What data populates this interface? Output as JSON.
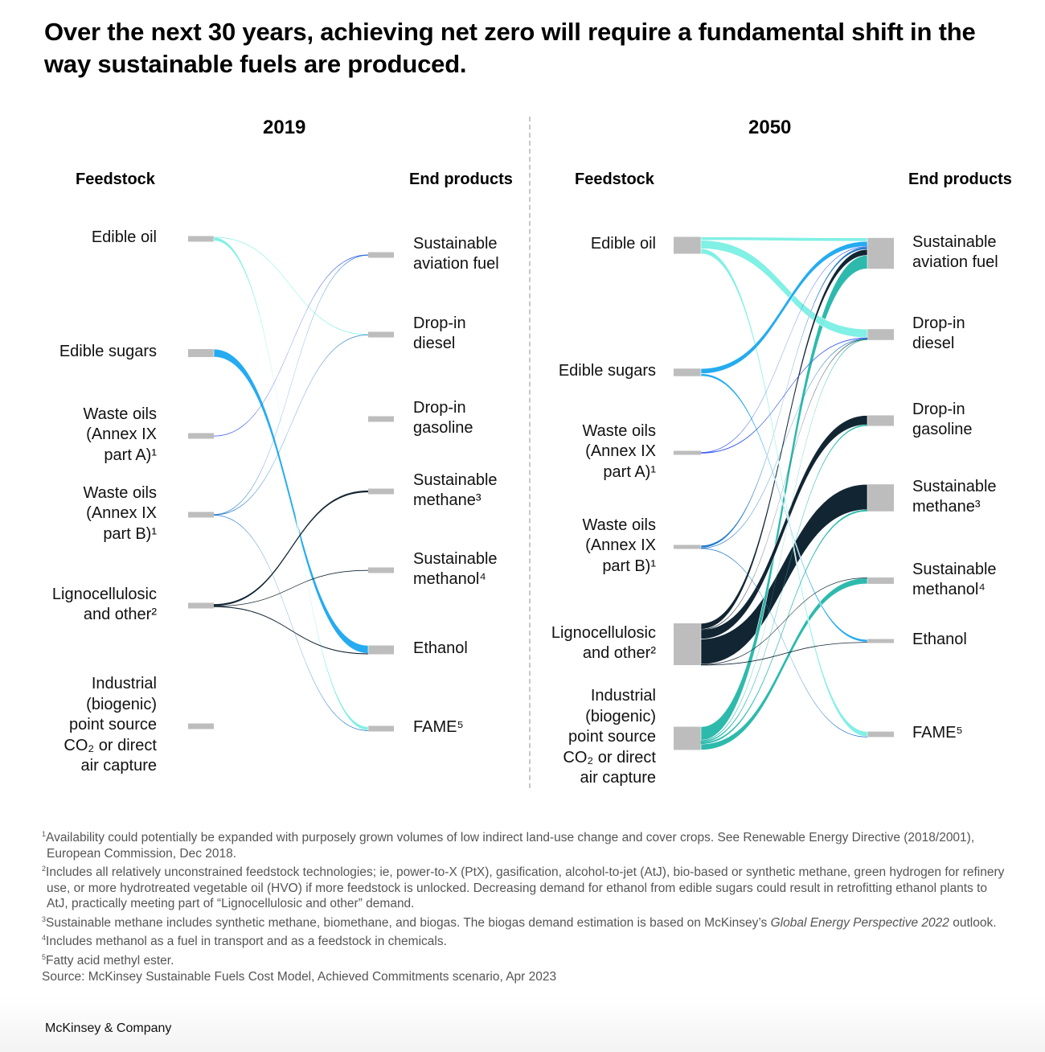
{
  "title": "Over the next 30 years, achieving net zero will require a fundamental shift in the way sustainable fuels are produced.",
  "headers": {
    "feedstock": "Feedstock",
    "end_products": "End products"
  },
  "chart_data": {
    "type": "sankey",
    "title": "Over the next 30 years, achieving net zero will require a fundamental shift in the way sustainable fuels are produced.",
    "feedstock_colors": {
      "edible_oil": "#7DEFE4",
      "edible_sugars": "#1EA8F0",
      "waste_a": "#3355EE",
      "waste_b": "#1F78C8",
      "ligno": "#0A1E2C",
      "co2": "#26B8A9"
    },
    "node_color": "#BDBDBD",
    "sources": [
      {
        "id": "edible_oil",
        "label": "Edible oil"
      },
      {
        "id": "edible_sugars",
        "label": "Edible sugars"
      },
      {
        "id": "waste_a",
        "label": "Waste oils\n(Annex IX\npart A)¹"
      },
      {
        "id": "waste_b",
        "label": "Waste oils\n(Annex IX\npart B)¹"
      },
      {
        "id": "ligno",
        "label": "Lignocellulosic\nand other²"
      },
      {
        "id": "co2",
        "label": "Industrial\n(biogenic)\npoint source\nCO₂ or direct\nair capture"
      }
    ],
    "targets": [
      {
        "id": "saf",
        "label": "Sustainable\naviation fuel"
      },
      {
        "id": "diesel",
        "label": "Drop-in\ndiesel"
      },
      {
        "id": "gasoline",
        "label": "Drop-in\ngasoline"
      },
      {
        "id": "methane",
        "label": "Sustainable\nmethane³"
      },
      {
        "id": "methanol",
        "label": "Sustainable\nmethanol⁴"
      },
      {
        "id": "ethanol",
        "label": "Ethanol"
      },
      {
        "id": "fame",
        "label": "FAME⁵"
      }
    ],
    "panels": [
      {
        "year": "2019",
        "flows": [
          {
            "source": "edible_oil",
            "target": "diesel",
            "value": 0.4
          },
          {
            "source": "edible_oil",
            "target": "fame",
            "value": 4
          },
          {
            "source": "edible_sugars",
            "target": "ethanol",
            "value": 9
          },
          {
            "source": "waste_a",
            "target": "saf",
            "value": 0.4
          },
          {
            "source": "waste_b",
            "target": "saf",
            "value": 0.4
          },
          {
            "source": "waste_b",
            "target": "diesel",
            "value": 0.4
          },
          {
            "source": "waste_b",
            "target": "fame",
            "value": 0.4
          },
          {
            "source": "ligno",
            "target": "methane",
            "value": 2
          },
          {
            "source": "ligno",
            "target": "methanol",
            "value": 0.4
          },
          {
            "source": "ligno",
            "target": "ethanol",
            "value": 1
          }
        ]
      },
      {
        "year": "2050",
        "flows": [
          {
            "source": "edible_oil",
            "target": "saf",
            "value": 4
          },
          {
            "source": "edible_oil",
            "target": "diesel",
            "value": 10
          },
          {
            "source": "edible_oil",
            "target": "fame",
            "value": 6
          },
          {
            "source": "edible_sugars",
            "target": "saf",
            "value": 6
          },
          {
            "source": "edible_sugars",
            "target": "ethanol",
            "value": 3
          },
          {
            "source": "waste_a",
            "target": "saf",
            "value": 0.5
          },
          {
            "source": "waste_a",
            "target": "diesel",
            "value": 1
          },
          {
            "source": "waste_b",
            "target": "saf",
            "value": 3
          },
          {
            "source": "waste_b",
            "target": "diesel",
            "value": 0.4
          },
          {
            "source": "waste_b",
            "target": "fame",
            "value": 0.5
          },
          {
            "source": "ligno",
            "target": "saf",
            "value": 7
          },
          {
            "source": "ligno",
            "target": "diesel",
            "value": 0.5
          },
          {
            "source": "ligno",
            "target": "gasoline",
            "value": 11
          },
          {
            "source": "ligno",
            "target": "methane",
            "value": 30
          },
          {
            "source": "ligno",
            "target": "methanol",
            "value": 0.5
          },
          {
            "source": "ligno",
            "target": "ethanol",
            "value": 0.5
          },
          {
            "source": "co2",
            "target": "saf",
            "value": 16
          },
          {
            "source": "co2",
            "target": "diesel",
            "value": 1
          },
          {
            "source": "co2",
            "target": "gasoline",
            "value": 1.5
          },
          {
            "source": "co2",
            "target": "methane",
            "value": 2
          },
          {
            "source": "co2",
            "target": "methanol",
            "value": 7
          }
        ]
      }
    ]
  },
  "footnotes": [
    {
      "num": "1",
      "text": "Availability could potentially be expanded with purposely grown volumes of low indirect land-use change and cover crops. See Renewable Energy Directive (2018/2001), European Commission, Dec 2018."
    },
    {
      "num": "2",
      "text": "Includes all relatively unconstrained feedstock technologies; ie, power-to-X (PtX), gasification, alcohol-to-jet (AtJ), bio-based or synthetic methane, green hydrogen for refinery use, or more hydrotreated vegetable oil (HVO) if more feedstock is unlocked. Decreasing demand for ethanol from edible sugars could result in retrofitting ethanol plants to AtJ, practically meeting part of “Lignocellulosic and other” demand."
    },
    {
      "num": "3",
      "text": "Sustainable methane includes synthetic methane, biomethane, and biogas. The biogas demand estimation is based on McKinsey’s ",
      "italic": "Global Energy Perspective 2022",
      "after": " outlook."
    },
    {
      "num": "4",
      "text": "Includes methanol as a fuel in transport and as a feedstock in chemicals."
    },
    {
      "num": "5",
      "text": "Fatty acid methyl ester."
    }
  ],
  "source": "Source: McKinsey Sustainable Fuels Cost Model, Achieved Commitments scenario, Apr 2023",
  "brand": "McKinsey & Company"
}
